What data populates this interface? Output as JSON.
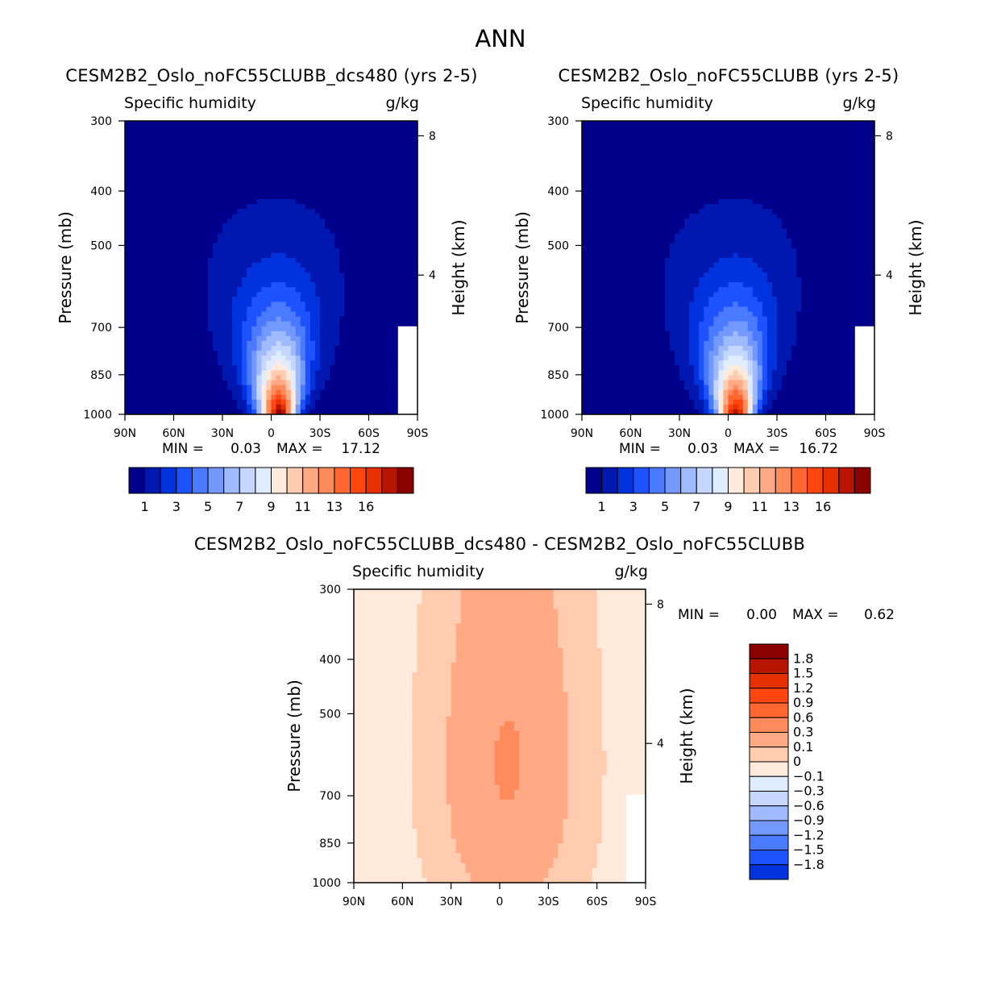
{
  "page_title": "ANN",
  "colors": {
    "blues": [
      "#00008b",
      "#0018b0",
      "#0033dd",
      "#1f52ff",
      "#4a7aff",
      "#7399ff",
      "#9fbaff",
      "#c6d7ff",
      "#e0ecff"
    ],
    "reds": [
      "#ffeadb",
      "#ffccb0",
      "#ffaa85",
      "#ff8a5c",
      "#ff6630",
      "#ff4510",
      "#e63000",
      "#b81500",
      "#8b0000"
    ],
    "diff_blues": [
      "#00008b",
      "#0018b0",
      "#0033dd",
      "#1f52ff",
      "#4a7aff",
      "#7399ff",
      "#9fbaff",
      "#c6d7ff",
      "#e0ecff"
    ],
    "diff_reds": [
      "#ffeadb",
      "#ffccb0",
      "#ffaa85",
      "#ff8a5c",
      "#ff6630",
      "#ff4510",
      "#e63000",
      "#b81500",
      "#8b0000"
    ]
  },
  "chart_data": [
    {
      "type": "heatmap",
      "title": "CESM2B2_Oslo_noFC55CLUBB_dcs480 (yrs 2-5)",
      "variable": "Specific humidity",
      "units": "g/kg",
      "ylabel": "Pressure (mb)",
      "ylabel_right": "Height (km)",
      "x_ticks": [
        "90N",
        "60N",
        "30N",
        "0",
        "30S",
        "60S",
        "90S"
      ],
      "y_ticks": [
        "300",
        "400",
        "500",
        "700",
        "850",
        "1000"
      ],
      "y_right_ticks": [
        "8",
        "4"
      ],
      "min_label": "MIN =",
      "min_value": "0.03",
      "max_label": "MAX =",
      "max_value": "17.12",
      "colorbar_labels": [
        "1",
        "3",
        "5",
        "7",
        "9",
        "11",
        "13",
        "16"
      ],
      "peak_lat": -5,
      "surface_max": 17.12
    },
    {
      "type": "heatmap",
      "title": "CESM2B2_Oslo_noFC55CLUBB (yrs 2-5)",
      "variable": "Specific humidity",
      "units": "g/kg",
      "ylabel": "Pressure (mb)",
      "ylabel_right": "Height (km)",
      "x_ticks": [
        "90N",
        "60N",
        "30N",
        "0",
        "30S",
        "60S",
        "90S"
      ],
      "y_ticks": [
        "300",
        "400",
        "500",
        "700",
        "850",
        "1000"
      ],
      "y_right_ticks": [
        "8",
        "4"
      ],
      "min_label": "MIN =",
      "min_value": "0.03",
      "max_label": "MAX =",
      "max_value": "16.72",
      "colorbar_labels": [
        "1",
        "3",
        "5",
        "7",
        "9",
        "11",
        "13",
        "16"
      ],
      "peak_lat": -5,
      "surface_max": 16.72
    },
    {
      "type": "heatmap",
      "title": "CESM2B2_Oslo_noFC55CLUBB_dcs480 - CESM2B2_Oslo_noFC55CLUBB",
      "variable": "Specific humidity",
      "units": "g/kg",
      "ylabel": "Pressure (mb)",
      "ylabel_right": "Height (km)",
      "x_ticks": [
        "90N",
        "60N",
        "30N",
        "0",
        "30S",
        "60S",
        "90S"
      ],
      "y_ticks": [
        "300",
        "400",
        "500",
        "700",
        "850",
        "1000"
      ],
      "y_right_ticks": [
        "8",
        "4"
      ],
      "min_label": "MIN =",
      "min_value": "0.00",
      "max_label": "MAX =",
      "max_value": "0.62",
      "colorbar_labels": [
        "1.8",
        "1.5",
        "1.2",
        "0.9",
        "0.6",
        "0.3",
        "0.1",
        "0",
        "−0.1",
        "−0.3",
        "−0.6",
        "−0.9",
        "−1.2",
        "−1.5",
        "−1.8"
      ]
    }
  ]
}
